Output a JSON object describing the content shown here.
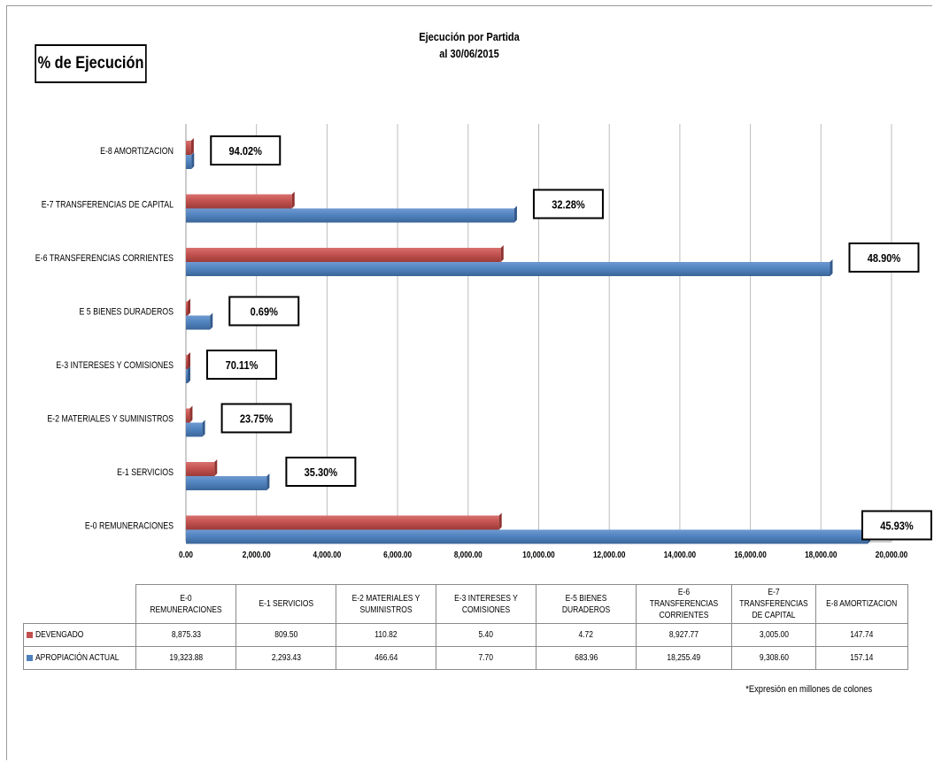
{
  "badge": "% de Ejecución",
  "title": {
    "line1": "Ejecución por Partida",
    "line2": "al 30/06/2015"
  },
  "footnote": "*Expresión en millones de colones",
  "colors": {
    "devengado": "#c0504d",
    "apropiacion": "#4f81bd"
  },
  "chart_data": {
    "type": "bar",
    "orientation": "horizontal",
    "categories": [
      "E-0 REMUNERACIONES",
      "E-1 SERVICIOS",
      "E-2 MATERIALES Y SUMINISTROS",
      "E-3 INTERESES Y COMISIONES",
      "E 5 BIENES DURADEROS",
      "E-6 TRANSFERENCIAS CORRIENTES",
      "E-7 TRANSFERENCIAS DE CAPITAL",
      "E-8 AMORTIZACION"
    ],
    "table_headers": [
      "E-0 REMUNERACIONES",
      "E-1 SERVICIOS",
      "E-2 MATERIALES Y SUMINISTROS",
      "E-3 INTERESES Y COMISIONES",
      "E-5 BIENES DURADEROS",
      "E-6 TRANSFERENCIAS CORRIENTES",
      "E-7 TRANSFERENCIAS DE CAPITAL",
      "E-8 AMORTIZACION"
    ],
    "series": [
      {
        "name": "DEVENGADO",
        "values": [
          8875.33,
          809.5,
          110.82,
          5.4,
          4.72,
          8927.77,
          3005.0,
          147.74
        ],
        "display": [
          "8,875.33",
          "809.50",
          "110.82",
          "5.40",
          "4.72",
          "8,927.77",
          "3,005.00",
          "147.74"
        ]
      },
      {
        "name": "APROPIACIÓN ACTUAL",
        "values": [
          19323.88,
          2293.43,
          466.64,
          7.7,
          683.96,
          18255.49,
          9308.6,
          157.14
        ],
        "display": [
          "19,323.88",
          "2,293.43",
          "466.64",
          "7.70",
          "683.96",
          "18,255.49",
          "9,308.60",
          "157.14"
        ]
      }
    ],
    "percent_labels": [
      "45.93%",
      "35.30%",
      "23.75%",
      "70.11%",
      "0.69%",
      "48.90%",
      "32.28%",
      "94.02%"
    ],
    "xlim": [
      0,
      20000
    ],
    "xticks": [
      0,
      2000,
      4000,
      6000,
      8000,
      10000,
      12000,
      14000,
      16000,
      18000,
      20000
    ],
    "xtick_labels": [
      "0.00",
      "2,000.00",
      "4,000.00",
      "6,000.00",
      "8,000.00",
      "10,000.00",
      "12,000.00",
      "14,000.00",
      "16,000.00",
      "18,000.00",
      "20,000.00"
    ],
    "grid": true,
    "legend": "data-table"
  }
}
